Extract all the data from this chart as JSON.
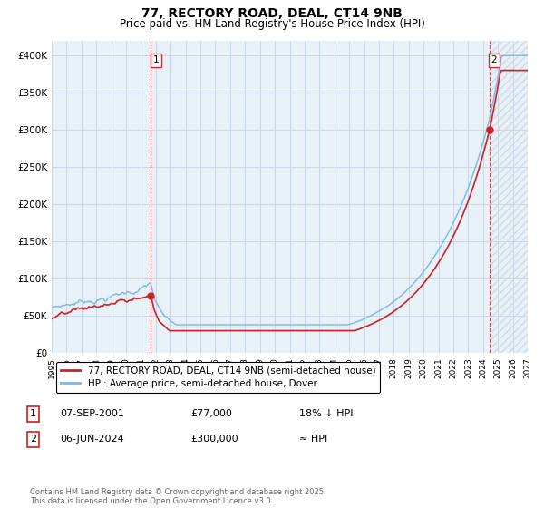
{
  "title": "77, RECTORY ROAD, DEAL, CT14 9NB",
  "subtitle": "Price paid vs. HM Land Registry's House Price Index (HPI)",
  "ylim": [
    0,
    420000
  ],
  "yticks": [
    0,
    50000,
    100000,
    150000,
    200000,
    250000,
    300000,
    350000,
    400000
  ],
  "ytick_labels": [
    "£0",
    "£50K",
    "£100K",
    "£150K",
    "£200K",
    "£250K",
    "£300K",
    "£350K",
    "£400K"
  ],
  "hpi_color": "#7bb8e8",
  "price_color": "#cc2222",
  "vline_color": "#cc2222",
  "grid_color": "#c8d8e8",
  "bg_color": "#ffffff",
  "plot_bg_color": "#e8f0f8",
  "hatch_color": "#c8d0e0",
  "annotation1_label": "1",
  "annotation1_date": "07-SEP-2001",
  "annotation1_price": "£77,000",
  "annotation1_note": "18% ↓ HPI",
  "annotation2_label": "2",
  "annotation2_date": "06-JUN-2024",
  "annotation2_price": "£300,000",
  "annotation2_note": "≈ HPI",
  "legend_line1": "77, RECTORY ROAD, DEAL, CT14 9NB (semi-detached house)",
  "legend_line2": "HPI: Average price, semi-detached house, Dover",
  "footnote": "Contains HM Land Registry data © Crown copyright and database right 2025.\nThis data is licensed under the Open Government Licence v3.0.",
  "year1_vline": 2001.67,
  "year2_vline": 2024.43,
  "dot1_year": 2001.67,
  "dot1_price": 77000,
  "dot2_year": 2024.43,
  "dot2_price": 300000
}
